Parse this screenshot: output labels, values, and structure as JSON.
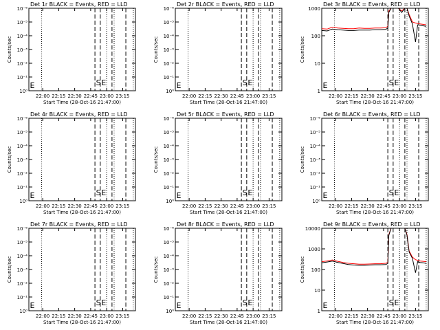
{
  "xaxis_label": "Start Time (28-Oct-16 21:47:00)",
  "ylabel": "Counts/sec",
  "x_ticks": [
    "22:00",
    "22:15",
    "22:30",
    "22:45",
    "23:00",
    "23:15"
  ],
  "x_tick_minutes": [
    13,
    28,
    43,
    58,
    73,
    88
  ],
  "x_range_minutes": [
    0,
    100
  ],
  "dotted_lines_minutes": [
    12,
    73,
    80,
    98
  ],
  "dashed_lines_minutes": [
    62,
    67,
    78,
    91
  ],
  "markers": {
    "S": 63,
    "E": 68,
    "E_left": 1
  },
  "colors": {
    "events": "#000000",
    "lld": "#ff0000"
  },
  "chart_data": [
    {
      "type": "line",
      "title": "Det 1r BLACK = Events, RED = LLD",
      "scale": "log",
      "ylim": [
        1,
        100000
      ],
      "y_ticks": [
        "10⁰",
        "10⁻¹",
        "10⁻²",
        "10⁻³",
        "10⁻⁴",
        "10⁻⁵",
        "10⁻⁶"
      ],
      "series": []
    },
    {
      "type": "line",
      "title": "Det 2r BLACK = Events, RED = LLD",
      "scale": "log",
      "ylim": [
        1,
        100000
      ],
      "y_ticks": [
        "10⁰",
        "10⁻¹",
        "10⁻²",
        "10⁻³",
        "10⁻⁴",
        "10⁻⁵",
        "10⁻⁶"
      ],
      "series": []
    },
    {
      "type": "line",
      "title": "Det 3r BLACK = Events, RED = LLD",
      "scale": "log",
      "ylim": [
        1,
        1000
      ],
      "y_ticks": [
        "1",
        "10",
        "100",
        "1000"
      ],
      "series": [
        {
          "color": "#ff0000",
          "x": [
            0,
            5,
            10,
            15,
            20,
            25,
            30,
            35,
            40,
            45,
            50,
            55,
            60,
            62,
            63,
            65,
            66,
            67,
            68,
            70,
            72,
            75,
            78,
            80,
            82,
            85,
            88,
            90,
            92,
            95,
            98
          ],
          "y": [
            180,
            175,
            205,
            190,
            185,
            180,
            180,
            190,
            185,
            185,
            190,
            190,
            195,
            220,
            800,
            1000,
            1000,
            1000,
            1000,
            1000,
            1000,
            800,
            1000,
            1000,
            600,
            320,
            290,
            280,
            270,
            260,
            250
          ]
        },
        {
          "color": "#000000",
          "x": [
            0,
            5,
            10,
            15,
            20,
            25,
            30,
            35,
            40,
            45,
            50,
            55,
            60,
            62,
            63,
            65,
            66,
            67,
            68,
            70,
            72,
            75,
            78,
            80,
            82,
            85,
            88,
            90,
            92,
            95,
            98
          ],
          "y": [
            155,
            150,
            175,
            165,
            160,
            155,
            155,
            160,
            160,
            160,
            165,
            165,
            170,
            190,
            700,
            1000,
            1000,
            1000,
            1000,
            1000,
            1000,
            700,
            1000,
            1000,
            520,
            270,
            60,
            250,
            240,
            230,
            220
          ]
        }
      ]
    },
    {
      "type": "line",
      "title": "Det 4r BLACK = Events, RED = LLD",
      "scale": "log",
      "ylim": [
        1,
        100000
      ],
      "y_ticks": [
        "10⁰",
        "10⁻¹",
        "10⁻²",
        "10⁻³",
        "10⁻⁴",
        "10⁻⁵",
        "10⁻⁶"
      ],
      "series": []
    },
    {
      "type": "line",
      "title": "Det 5r BLACK = Events, RED = LLD",
      "scale": "log",
      "ylim": [
        1,
        100000
      ],
      "y_ticks": [
        "10⁰",
        "10⁻¹",
        "10⁻²",
        "10⁻³",
        "10⁻⁴",
        "10⁻⁵",
        "10⁻⁶"
      ],
      "series": []
    },
    {
      "type": "line",
      "title": "Det 6r BLACK = Events, RED = LLD",
      "scale": "log",
      "ylim": [
        1,
        100000
      ],
      "y_ticks": [
        "10⁰",
        "10⁻¹",
        "10⁻²",
        "10⁻³",
        "10⁻⁴",
        "10⁻⁵",
        "10⁻⁶"
      ],
      "series": []
    },
    {
      "type": "line",
      "title": "Det 7r BLACK = Events, RED = LLD",
      "scale": "log",
      "ylim": [
        1,
        100000
      ],
      "y_ticks": [
        "10⁰",
        "10⁻¹",
        "10⁻²",
        "10⁻³",
        "10⁻⁴",
        "10⁻⁵",
        "10⁻⁶"
      ],
      "series": []
    },
    {
      "type": "line",
      "title": "Det 8r BLACK = Events, RED = LLD",
      "scale": "log",
      "ylim": [
        1,
        100000
      ],
      "y_ticks": [
        "10⁰",
        "10⁻¹",
        "10⁻²",
        "10⁻³",
        "10⁻⁴",
        "10⁻⁵",
        "10⁻⁶"
      ],
      "series": []
    },
    {
      "type": "line",
      "title": "Det 9r BLACK = Events, RED = LLD",
      "scale": "log",
      "ylim": [
        1,
        10000
      ],
      "y_ticks": [
        "1",
        "10",
        "100",
        "1000",
        "10000"
      ],
      "series": [
        {
          "color": "#ff0000",
          "x": [
            0,
            5,
            10,
            15,
            20,
            25,
            30,
            35,
            40,
            45,
            50,
            55,
            60,
            62,
            63,
            65,
            67,
            68,
            70,
            72,
            74,
            76,
            78,
            80,
            82,
            85,
            88,
            90,
            92,
            95,
            98
          ],
          "y": [
            240,
            260,
            290,
            250,
            220,
            200,
            190,
            180,
            180,
            185,
            190,
            190,
            200,
            220,
            5000,
            10000,
            10000,
            10000,
            10000,
            10000,
            10000,
            10000,
            10000,
            5000,
            800,
            400,
            300,
            280,
            260,
            250,
            240
          ]
        },
        {
          "color": "#000000",
          "x": [
            0,
            5,
            10,
            15,
            20,
            25,
            30,
            35,
            40,
            45,
            50,
            55,
            60,
            62,
            63,
            65,
            67,
            68,
            70,
            72,
            74,
            76,
            78,
            80,
            82,
            85,
            88,
            90,
            92,
            95,
            98
          ],
          "y": [
            210,
            230,
            255,
            220,
            195,
            175,
            165,
            160,
            160,
            165,
            170,
            170,
            175,
            195,
            4500,
            10000,
            10000,
            10000,
            10000,
            10000,
            10000,
            10000,
            10000,
            4500,
            700,
            350,
            70,
            240,
            220,
            210,
            200
          ]
        }
      ]
    }
  ]
}
